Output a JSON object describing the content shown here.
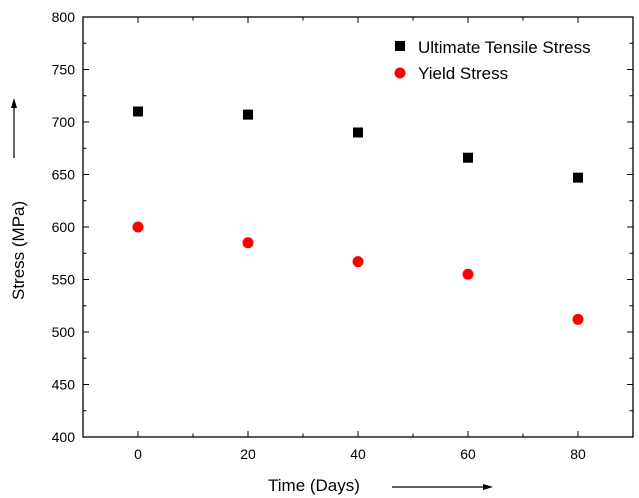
{
  "chart_data": {
    "type": "scatter",
    "title": "",
    "xlabel": "Time (Days)",
    "ylabel": "Stress (MPa)",
    "xlim": [
      -10,
      90
    ],
    "ylim": [
      400,
      800
    ],
    "x_ticks": [
      0,
      20,
      40,
      60,
      80
    ],
    "y_ticks": [
      400,
      450,
      500,
      550,
      600,
      650,
      700,
      750,
      800
    ],
    "grid": false,
    "legend_position": "top-right",
    "series": [
      {
        "name": "Ultimate Tensile Stress",
        "marker": "square",
        "color": "#000000",
        "x": [
          0,
          20,
          40,
          60,
          80
        ],
        "y": [
          710,
          707,
          690,
          666,
          647
        ]
      },
      {
        "name": "Yield Stress",
        "marker": "circle",
        "color": "#ff0000",
        "x": [
          0,
          20,
          40,
          60,
          80
        ],
        "y": [
          600,
          585,
          567,
          555,
          512
        ]
      }
    ]
  }
}
